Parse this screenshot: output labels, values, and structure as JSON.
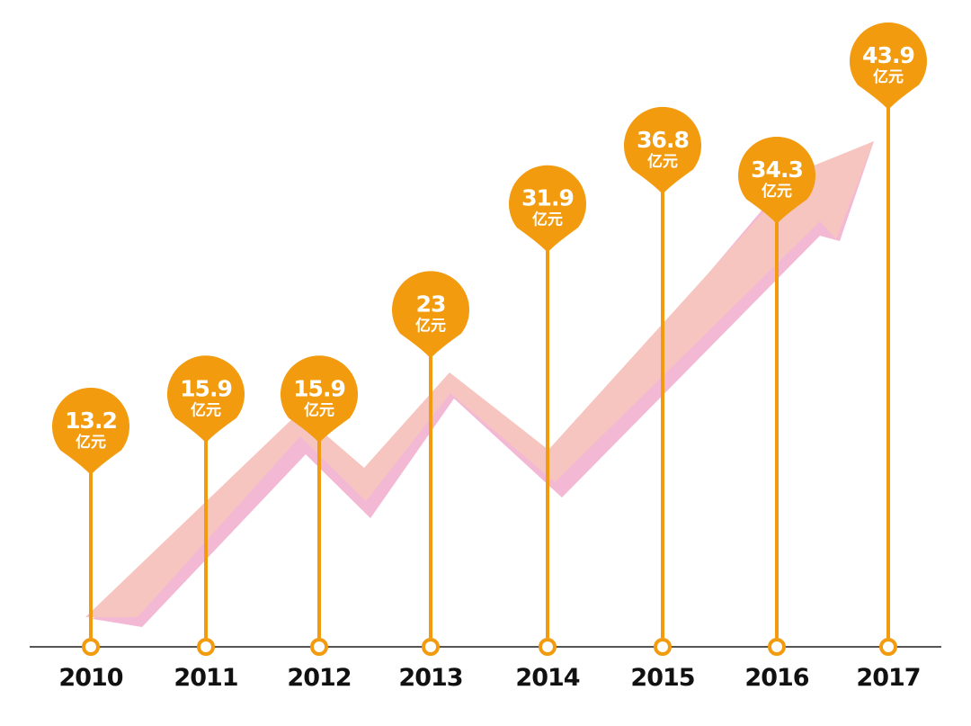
{
  "colors": {
    "pin": "#f29b0f",
    "axis": "#555555",
    "arrow": "#f7c5c0",
    "arrow_edge": "#f3b8d3",
    "year_text": "#111111"
  },
  "chart_data": {
    "type": "bar",
    "categories": [
      "2010",
      "2011",
      "2012",
      "2013",
      "2014",
      "2015",
      "2016",
      "2017"
    ],
    "values": [
      13.2,
      15.9,
      15.9,
      23,
      31.9,
      36.8,
      34.3,
      43.9
    ],
    "value_labels": [
      "13.2",
      "15.9",
      "15.9",
      "23",
      "31.9",
      "36.8",
      "34.3",
      "43.9"
    ],
    "unit_label": "亿元",
    "title": "",
    "xlabel": "",
    "ylabel": "",
    "grid": false,
    "legend": "none",
    "decoration": "upward-trend-arrow"
  }
}
